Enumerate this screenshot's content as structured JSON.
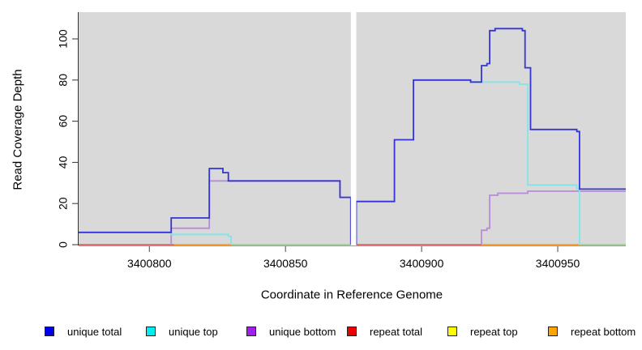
{
  "figure": {
    "background": "#ffffff",
    "plot_background": "#d9d9d9",
    "axis_color": "#333333",
    "tick_color": "#666666",
    "gap_color": "#ffffff"
  },
  "chart_data": {
    "type": "line",
    "subtype": "step-coverage-plot",
    "title": "",
    "xlabel": "Coordinate in Reference Genome",
    "ylabel": "Read Coverage Depth",
    "xlim": [
      3400774,
      3400975
    ],
    "ylim": [
      0,
      112
    ],
    "x_ticks": [
      3400800,
      3400850,
      3400900,
      3400950
    ],
    "y_ticks": [
      0,
      20,
      40,
      60,
      80,
      100
    ],
    "grid": false,
    "legend_position": "bottom",
    "gap": {
      "from": 3400874,
      "to": 3400876
    },
    "series": [
      {
        "name": "unique total",
        "legend_color": "#0000ee",
        "line_color": "#3434d8",
        "blocks": [
          {
            "x": [
              3400774,
              3400808,
              3400822,
              3400827,
              3400829,
              3400870,
              3400874
            ],
            "v": [
              6,
              13,
              37,
              35,
              31,
              23
            ],
            "rise": false,
            "drop": true
          },
          {
            "x": [
              3400876,
              3400890,
              3400897,
              3400918,
              3400922,
              3400924,
              3400925,
              3400927,
              3400937,
              3400938,
              3400940,
              3400957,
              3400958,
              3400975
            ],
            "v": [
              21,
              51,
              80,
              79,
              87,
              88,
              104,
              105,
              104,
              86,
              56,
              55,
              27
            ],
            "rise": true,
            "drop": false
          }
        ]
      },
      {
        "name": "unique top",
        "legend_color": "#00eeee",
        "line_color": "#7fe6ea",
        "blocks": [
          {
            "x": [
              3400774,
              3400808,
              3400829,
              3400830
            ],
            "v": [
              6,
              5,
              4
            ],
            "rise": false,
            "drop": true
          },
          {
            "x": [
              3400876,
              3400890,
              3400897,
              3400918,
              3400936,
              3400939,
              3400957,
              3400958
            ],
            "v": [
              21,
              51,
              80,
              79,
              78,
              29,
              27
            ],
            "rise": true,
            "drop": true
          }
        ]
      },
      {
        "name": "unique bottom",
        "legend_color": "#a020f0",
        "line_color": "#b78cd6",
        "blocks": [
          {
            "x": [
              3400808,
              3400822,
              3400870,
              3400874
            ],
            "v": [
              8,
              31,
              23
            ],
            "rise": true,
            "drop": true
          },
          {
            "x": [
              3400922,
              3400924,
              3400925,
              3400928,
              3400939,
              3400975
            ],
            "v": [
              7,
              8,
              24,
              25,
              26
            ],
            "rise": true,
            "drop": false
          }
        ]
      },
      {
        "name": "repeat total",
        "legend_color": "#ee0000",
        "line_color": "#e0697a",
        "blocks": [
          {
            "x": [
              3400774,
              3400874
            ],
            "v": [
              0
            ],
            "rise": false,
            "drop": false
          },
          {
            "x": [
              3400876,
              3400975
            ],
            "v": [
              0
            ],
            "rise": false,
            "drop": false
          }
        ]
      },
      {
        "name": "repeat top",
        "legend_color": "#ffff00",
        "line_color": "#f2ec6e",
        "blocks": [
          {
            "x": [
              3400774,
              3400874
            ],
            "v": [
              0
            ],
            "rise": false,
            "drop": false
          },
          {
            "x": [
              3400876,
              3400975
            ],
            "v": [
              0
            ],
            "rise": false,
            "drop": false
          }
        ]
      },
      {
        "name": "repeat bottom",
        "legend_color": "#ffa500",
        "line_color": "#ff9e30",
        "blocks": [
          {
            "x": [
              3400774,
              3400874
            ],
            "v": [
              0
            ],
            "rise": false,
            "drop": false
          },
          {
            "x": [
              3400876,
              3400975
            ],
            "v": [
              0
            ],
            "rise": false,
            "drop": false
          }
        ]
      }
    ],
    "baseline_segments": [
      {
        "from": 3400774,
        "to": 3400809,
        "color": "#e0697a"
      },
      {
        "from": 3400809,
        "to": 3400830,
        "color": "#ff9e30"
      },
      {
        "from": 3400830,
        "to": 3400874,
        "color": "#98d8a4"
      },
      {
        "from": 3400876,
        "to": 3400922,
        "color": "#e0697a"
      },
      {
        "from": 3400922,
        "to": 3400958,
        "color": "#ff9e30"
      },
      {
        "from": 3400958,
        "to": 3400975,
        "color": "#98d8a4"
      }
    ]
  }
}
